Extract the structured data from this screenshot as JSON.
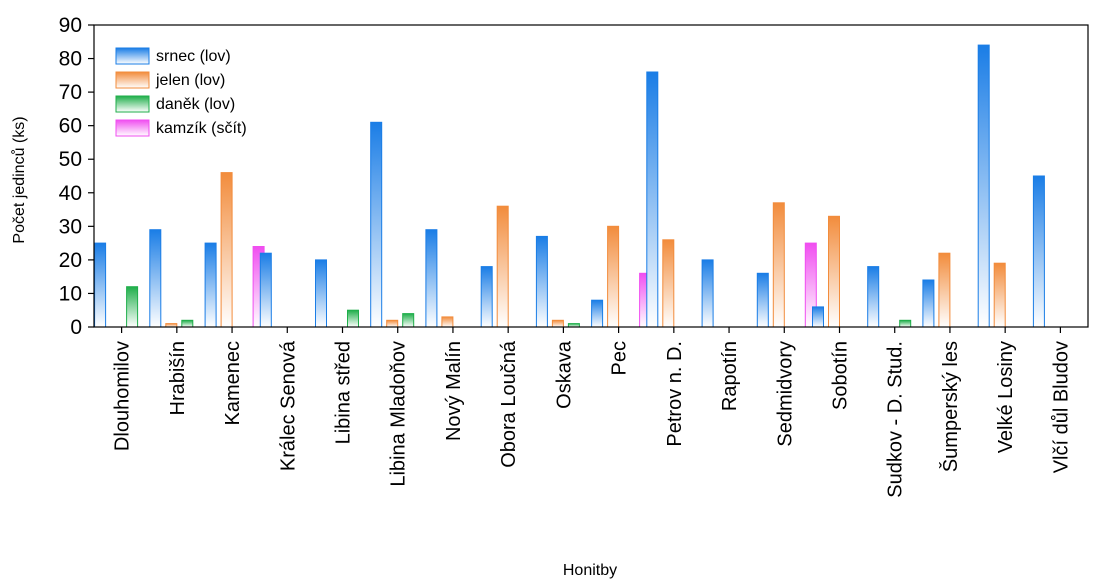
{
  "chart_data": {
    "type": "bar",
    "title": "",
    "xlabel": "Honitby",
    "ylabel": "Počet jedinců (ks)",
    "ylim": [
      0,
      90
    ],
    "yticks": [
      0,
      10,
      20,
      30,
      40,
      50,
      60,
      70,
      80,
      90
    ],
    "grid": false,
    "legend_position": "top-left",
    "categories": [
      "Dlouhomilov",
      "Hrabišín",
      "Kamenec",
      "Králec Senová",
      "Libina střed",
      "Libina Mladoňov",
      "Nový Malín",
      "Obora Loučná",
      "Oskava",
      "Pec",
      "Petrov n. D.",
      "Rapotín",
      "Sedmidvory",
      "Sobotín",
      "Sudkov - D. Stud.",
      "Šumperský les",
      "Velké Losiny",
      "Vlčí důl Bludov"
    ],
    "series": [
      {
        "name": "srnec (lov)",
        "color": "#1a7de6",
        "values": [
          25,
          29,
          25,
          22,
          20,
          61,
          29,
          18,
          27,
          8,
          76,
          20,
          16,
          6,
          18,
          14,
          84,
          45
        ]
      },
      {
        "name": "jelen (lov)",
        "color": "#f28c3c",
        "values": [
          0,
          1,
          46,
          0,
          0,
          2,
          3,
          36,
          2,
          30,
          26,
          0,
          37,
          33,
          0,
          22,
          19,
          0
        ]
      },
      {
        "name": "daněk (lov)",
        "color": "#1fae4a",
        "values": [
          12,
          2,
          0,
          0,
          5,
          4,
          0,
          0,
          1,
          0,
          0,
          0,
          0,
          0,
          2,
          0,
          0,
          0
        ]
      },
      {
        "name": "kamzík (sčít)",
        "color": "#f04ef0",
        "values": [
          0,
          0,
          24,
          0,
          0,
          0,
          0,
          0,
          0,
          16,
          0,
          0,
          25,
          0,
          0,
          0,
          0,
          0
        ]
      }
    ]
  }
}
